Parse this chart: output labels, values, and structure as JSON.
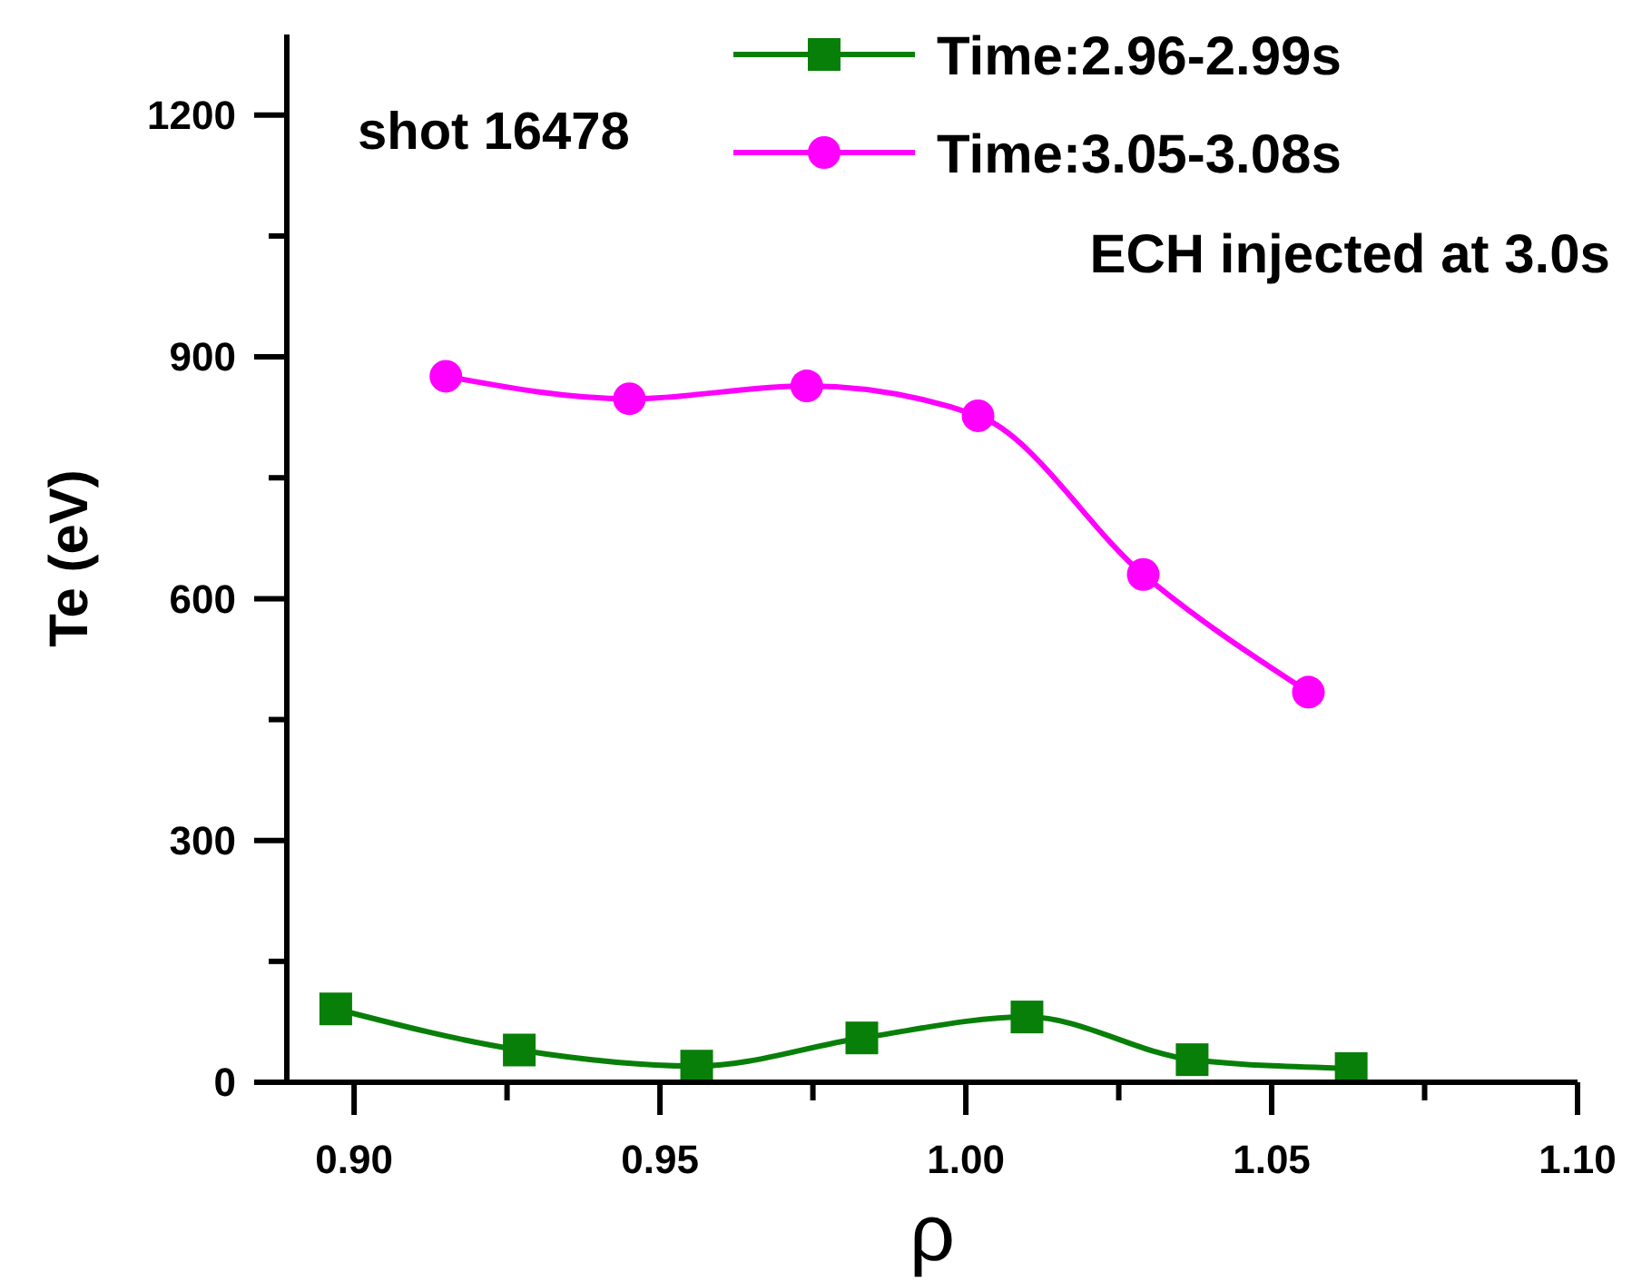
{
  "chart_data": {
    "type": "line",
    "xlabel": "ρ",
    "ylabel": "Te (eV)",
    "xlim": [
      0.889,
      1.1
    ],
    "ylim": [
      0,
      1300
    ],
    "xticks": [
      {
        "value": 0.9,
        "label": "0.90"
      },
      {
        "value": 0.925,
        "label": null
      },
      {
        "value": 0.95,
        "label": "0.95"
      },
      {
        "value": 0.975,
        "label": null
      },
      {
        "value": 1.0,
        "label": "1.00"
      },
      {
        "value": 1.025,
        "label": null
      },
      {
        "value": 1.05,
        "label": "1.05"
      },
      {
        "value": 1.075,
        "label": null
      },
      {
        "value": 1.1,
        "label": "1.10"
      }
    ],
    "yticks": [
      0,
      {
        "value": 150,
        "label": null
      },
      300,
      {
        "value": 450,
        "label": null
      },
      600,
      {
        "value": 750,
        "label": null
      },
      900,
      {
        "value": 1050,
        "label": null
      },
      1200
    ],
    "series": [
      {
        "name": "Time:2.96-2.99s",
        "color": "#087f08",
        "marker": "square",
        "x": [
          0.897,
          0.927,
          0.956,
          0.983,
          1.01,
          1.037,
          1.063
        ],
        "values": [
          91,
          40,
          20,
          55,
          81,
          28,
          17
        ]
      },
      {
        "name": "Time:3.05-3.08s",
        "color": "#ff00ff",
        "marker": "circle",
        "x": [
          0.915,
          0.945,
          0.974,
          1.002,
          1.029,
          1.056
        ],
        "values": [
          876,
          848,
          864,
          827,
          630,
          484
        ]
      }
    ],
    "annotations": [
      "shot 16478",
      "ECH injected at 3.0s"
    ],
    "legend": "top right",
    "grid": false
  }
}
